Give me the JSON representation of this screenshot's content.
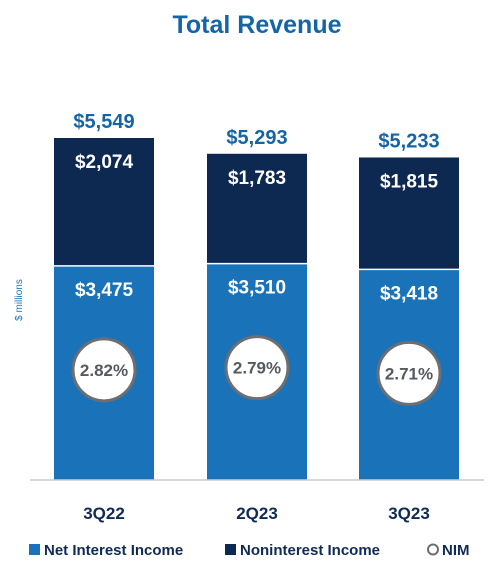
{
  "chart_data": {
    "type": "bar",
    "stacked": true,
    "title": "Total Revenue",
    "ylabel": "$ millions",
    "categories": [
      "3Q22",
      "2Q23",
      "3Q23"
    ],
    "series": [
      {
        "name": "Net Interest Income",
        "values": [
          3475,
          3510,
          3418
        ],
        "labels": [
          "$3,475",
          "$3,510",
          "$3,418"
        ],
        "color": "#1a73b8"
      },
      {
        "name": "Noninterest Income",
        "values": [
          2074,
          1783,
          1815
        ],
        "labels": [
          "$2,074",
          "$1,783",
          "$1,815"
        ],
        "color": "#0d2851"
      }
    ],
    "totals": [
      5549,
      5293,
      5233
    ],
    "total_labels": [
      "$5,549",
      "$5,293",
      "$5,233"
    ],
    "nim": {
      "name": "NIM",
      "values": [
        2.82,
        2.79,
        2.71
      ],
      "labels": [
        "2.82%",
        "2.79%",
        "2.71%"
      ]
    },
    "legend": {
      "position": "bottom",
      "items": [
        {
          "label": "Net Interest Income",
          "marker": "square",
          "color": "#1a73b8"
        },
        {
          "label": "Noninterest Income",
          "marker": "square",
          "color": "#0d2851"
        },
        {
          "label": "NIM",
          "marker": "circle",
          "color": "#6b6e72"
        }
      ]
    },
    "grid": false
  }
}
